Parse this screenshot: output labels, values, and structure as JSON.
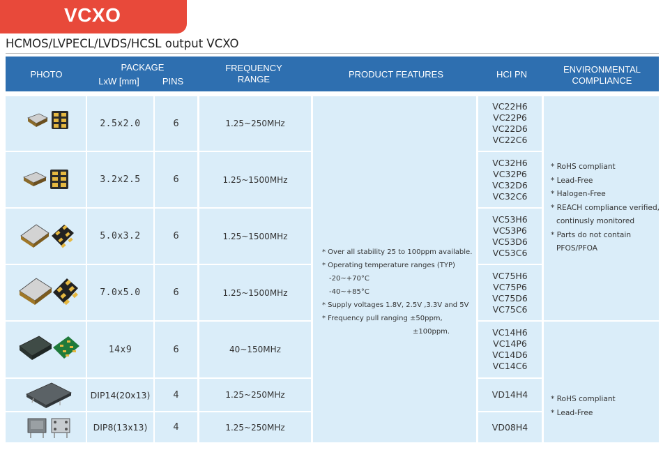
{
  "badge": "VCXO",
  "subtitle": "HCMOS/LVPECL/LVDS/HCSL output VCXO",
  "headers": {
    "photo": "PHOTO",
    "package": "PACKAGE",
    "lxw": "LxW [mm]",
    "pins": "PINS",
    "freq1": "FREQUENCY",
    "freq2": "RANGE",
    "features": "PRODUCT FEATURES",
    "hci": "HCI PN",
    "env1": "ENVIRONMENTAL",
    "env2": "COMPLIANCE"
  },
  "rows": [
    {
      "size": "2.5x2.0",
      "pins": "6",
      "freq": "1.25~250MHz",
      "pn": [
        "VC22H6",
        "VC22P6",
        "VC22D6",
        "VC22C6"
      ]
    },
    {
      "size": "3.2x2.5",
      "pins": "6",
      "freq": "1.25~1500MHz",
      "pn": [
        "VC32H6",
        "VC32P6",
        "VC32D6",
        "VC32C6"
      ]
    },
    {
      "size": "5.0x3.2",
      "pins": "6",
      "freq": "1.25~1500MHz",
      "pn": [
        "VC53H6",
        "VC53P6",
        "VC53D6",
        "VC53C6"
      ]
    },
    {
      "size": "7.0x5.0",
      "pins": "6",
      "freq": "1.25~1500MHz",
      "pn": [
        "VC75H6",
        "VC75P6",
        "VC75D6",
        "VC75C6"
      ]
    },
    {
      "size": "14x9",
      "pins": "6",
      "freq": "40~150MHz",
      "pn": [
        "VC14H6",
        "VC14P6",
        "VC14D6",
        "VC14C6"
      ]
    },
    {
      "size": "DIP14(20x13)",
      "pins": "4",
      "freq": "1.25~250MHz",
      "pn": [
        "VD14H4"
      ]
    },
    {
      "size": "DIP8(13x13)",
      "pins": "4",
      "freq": "1.25~250MHz",
      "pn": [
        "VD08H4"
      ]
    }
  ],
  "features": [
    "* Over all stability 25 to 100ppm available.",
    "* Operating temperature ranges (TYP)",
    "  -20~+70°C",
    "  -40~+85°C",
    "* Supply voltages 1.8V, 2.5V ,3.3V and 5V",
    "* Frequency pull ranging ±50ppm,",
    "±100ppm."
  ],
  "env_a": [
    "* RoHS compliant",
    "* Lead-Free",
    "* Halogen-Free",
    "* REACH compliance verified,",
    "  continusly monitored",
    "* Parts do not contain",
    "  PFOS/PFOA"
  ],
  "env_b": [
    "* RoHS compliant",
    "* Lead-Free"
  ],
  "colors": {
    "accent": "#e8493a",
    "header": "#2e6fb0",
    "cell": "#daedf9"
  }
}
